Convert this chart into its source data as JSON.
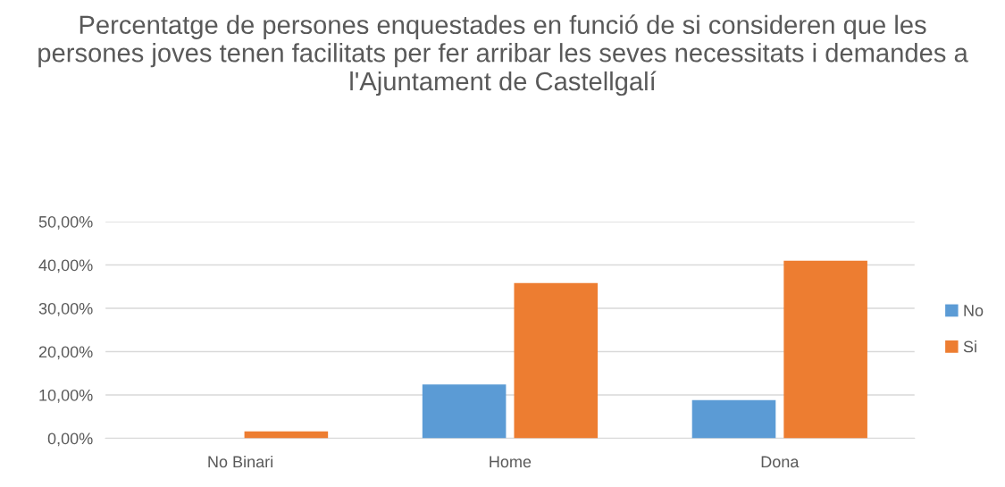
{
  "chart_data": {
    "type": "bar",
    "title": "Percentatge de persones enquestades en funció de si consideren que les persones joves tenen facilitats per fer arribar les seves necessitats i demandes a l'Ajuntament de Castellgalí",
    "categories": [
      "No Binari",
      "Home",
      "Dona"
    ],
    "series": [
      {
        "name": "No",
        "color": "#5b9bd5",
        "values": [
          0,
          12.4,
          8.8
        ]
      },
      {
        "name": "Si",
        "color": "#ed7d31",
        "values": [
          1.6,
          35.8,
          41.0
        ]
      }
    ],
    "ylim": [
      0,
      50
    ],
    "yticks": [
      {
        "value": 0,
        "label": "0,00%"
      },
      {
        "value": 10,
        "label": "10,00%"
      },
      {
        "value": 20,
        "label": "20,00%"
      },
      {
        "value": 30,
        "label": "30,00%"
      },
      {
        "value": 40,
        "label": "40,00%"
      },
      {
        "value": 50,
        "label": "50,00%"
      }
    ],
    "grid": "y",
    "legend": "right"
  }
}
